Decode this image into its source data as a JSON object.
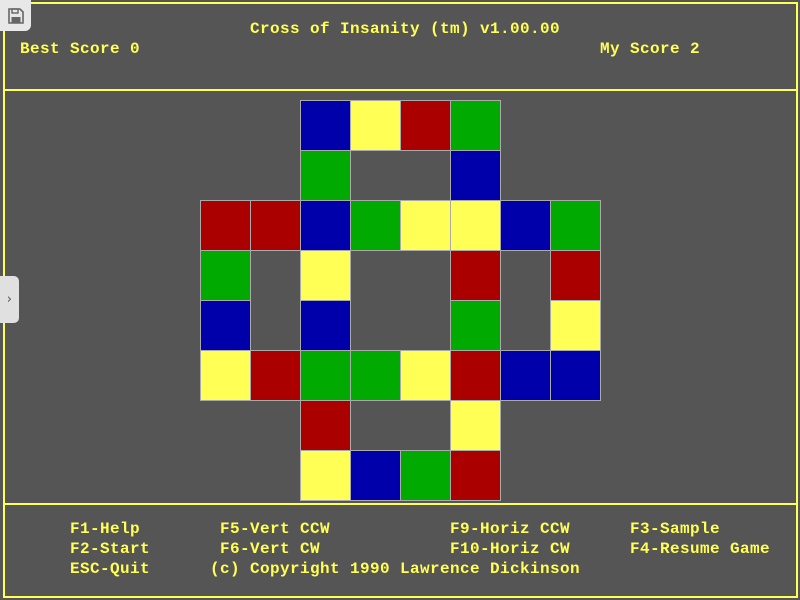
{
  "header": {
    "title": "Cross of Insanity (tm) v1.00.00",
    "best_score": "Best Score 0",
    "my_score": "My Score 2"
  },
  "colors": {
    "background": "#555555",
    "text": "#ffff55",
    "B": "#0000aa",
    "Y": "#ffff55",
    "R": "#aa0000",
    "G": "#00aa00"
  },
  "board": [
    "..BYRG..",
    "..G..B..",
    "RRBGYYBG",
    "G.Y..R.R",
    "B.B..G.Y",
    "YRGGYRBB",
    "..R..Y..",
    "..YBGR.."
  ],
  "footer": {
    "f1": "F1-Help",
    "f2": "F2-Start",
    "esc": "ESC-Quit",
    "f5": "F5-Vert CCW",
    "f6": "F6-Vert CW",
    "f9": "F9-Horiz CCW",
    "f10": "F10-Horiz CW",
    "f3": "F3-Sample",
    "f4": "F4-Resume Game",
    "copyright": "(c) Copyright 1990 Lawrence Dickinson"
  },
  "overlay": {
    "save_icon": "floppy-disk-icon",
    "expand_icon": "chevron-right-icon"
  }
}
